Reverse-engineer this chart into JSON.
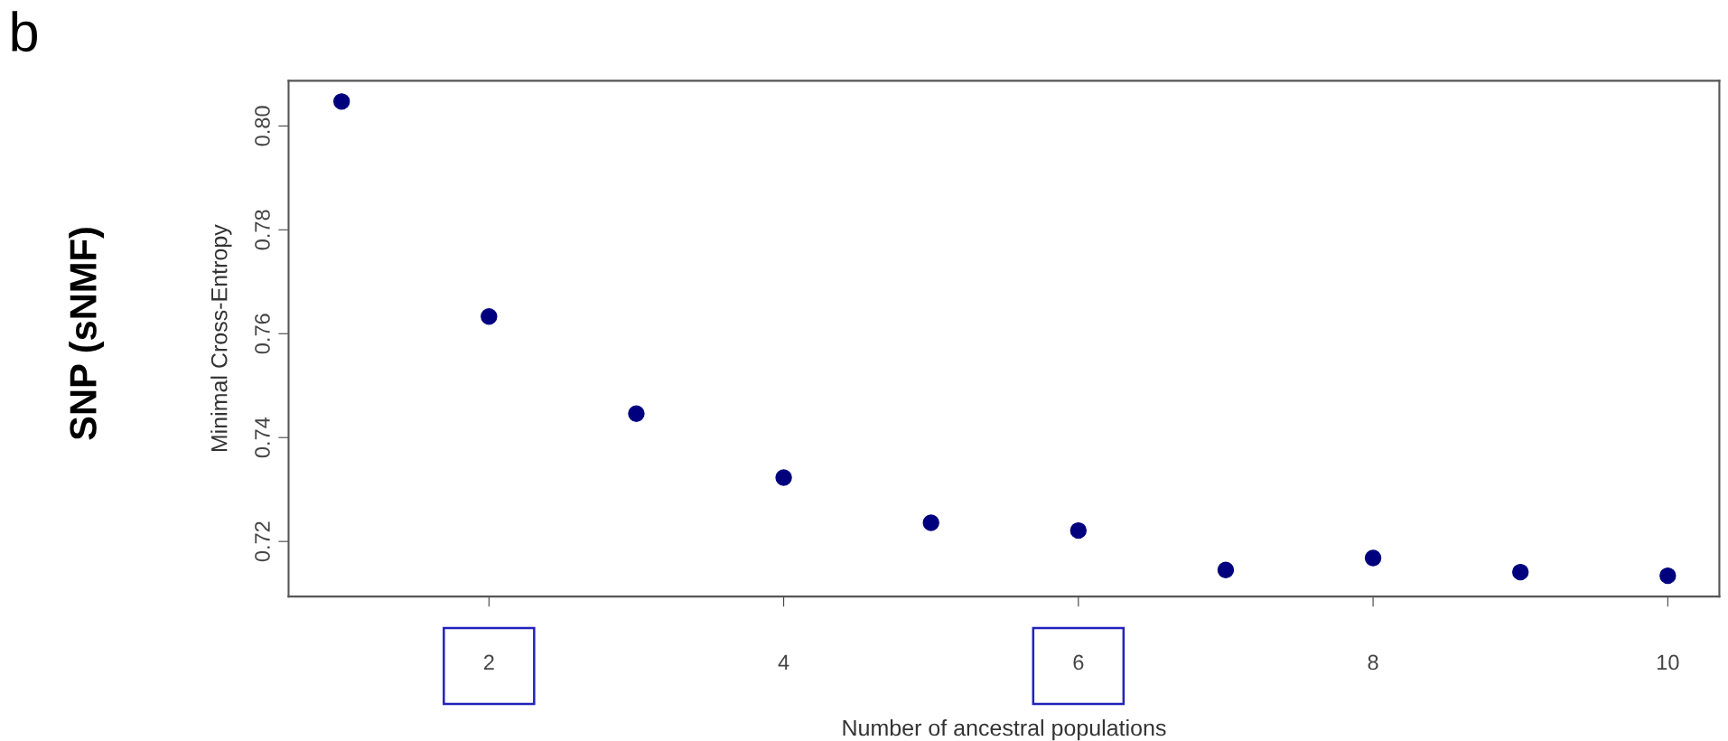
{
  "chart_data": {
    "type": "scatter",
    "xlabel": "Number of ancestral populations",
    "ylabel": "Minimal Cross-Entropy",
    "annotations": [
      "b",
      "SNP (sNMF)"
    ],
    "x": [
      1,
      2,
      3,
      4,
      5,
      6,
      7,
      8,
      9,
      10
    ],
    "series": [
      {
        "color": "#00007f",
        "values": [
          0.8047,
          0.7633,
          0.7446,
          0.7323,
          0.7236,
          0.7221,
          0.7145,
          0.7168,
          0.7141,
          0.7134
        ]
      }
    ],
    "xlim": [
      0.64,
      10.35
    ],
    "ylim": [
      0.7094,
      0.8087
    ],
    "xticks": [
      2,
      4,
      6,
      8,
      10
    ],
    "yticks": [
      {
        "value": 0.72,
        "label": "0.72"
      },
      {
        "value": 0.74,
        "label": "0.74"
      },
      {
        "value": 0.76,
        "label": "0.76"
      },
      {
        "value": 0.78,
        "label": "0.78"
      },
      {
        "value": 0.8,
        "label": "0.80"
      }
    ],
    "marker": "circle",
    "grid": false,
    "legend": false
  }
}
